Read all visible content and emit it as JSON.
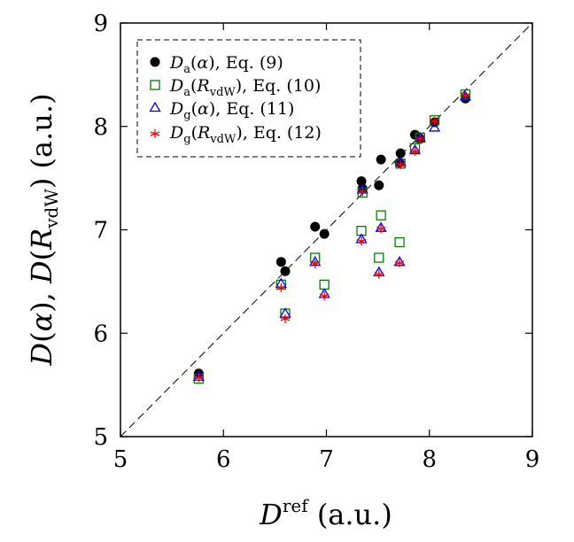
{
  "chart_data": {
    "type": "scatter",
    "xlabel": "D^ref (a.u.)",
    "ylabel": "D(α), D(R_vdW) (a.u.)",
    "xlim": [
      5,
      9
    ],
    "ylim": [
      5,
      9
    ],
    "xticks": [
      "5",
      "6",
      "7",
      "8",
      "9"
    ],
    "yticks": [
      "5",
      "6",
      "7",
      "8",
      "9"
    ],
    "diagonal": true,
    "grid": false,
    "legend_position": "top-left",
    "series": [
      {
        "name": "D_a(α), Eq. (9)",
        "marker": "filled-circle",
        "color": "#000000",
        "points": [
          [
            5.76,
            5.61
          ],
          [
            6.56,
            6.69
          ],
          [
            6.6,
            6.6
          ],
          [
            6.89,
            7.03
          ],
          [
            6.98,
            6.96
          ],
          [
            7.34,
            7.47
          ],
          [
            7.35,
            7.4
          ],
          [
            7.51,
            7.43
          ],
          [
            7.53,
            7.68
          ],
          [
            7.71,
            7.65
          ],
          [
            7.72,
            7.74
          ],
          [
            7.86,
            7.92
          ],
          [
            7.91,
            7.88
          ],
          [
            8.05,
            8.04
          ],
          [
            8.35,
            8.27
          ]
        ]
      },
      {
        "name": "D_a(R_vdW), Eq. (10)",
        "marker": "open-square",
        "color": "#008000",
        "points": [
          [
            5.76,
            5.56
          ],
          [
            6.56,
            6.47
          ],
          [
            6.6,
            6.19
          ],
          [
            6.89,
            6.73
          ],
          [
            6.98,
            6.47
          ],
          [
            7.34,
            6.99
          ],
          [
            7.35,
            7.36
          ],
          [
            7.51,
            6.73
          ],
          [
            7.53,
            7.14
          ],
          [
            7.71,
            6.88
          ],
          [
            7.72,
            7.64
          ],
          [
            7.86,
            7.79
          ],
          [
            7.91,
            7.89
          ],
          [
            8.05,
            8.06
          ],
          [
            8.35,
            8.31
          ]
        ]
      },
      {
        "name": "D_g(α), Eq. (11)",
        "marker": "open-triangle",
        "color": "#0000ff",
        "points": [
          [
            5.76,
            5.58
          ],
          [
            6.56,
            6.48
          ],
          [
            6.6,
            6.19
          ],
          [
            6.89,
            6.69
          ],
          [
            6.98,
            6.38
          ],
          [
            7.34,
            6.91
          ],
          [
            7.35,
            7.39
          ],
          [
            7.51,
            6.59
          ],
          [
            7.53,
            7.02
          ],
          [
            7.71,
            6.69
          ],
          [
            7.72,
            7.65
          ],
          [
            7.86,
            7.77
          ],
          [
            7.91,
            7.89
          ],
          [
            8.05,
            7.99
          ],
          [
            8.35,
            8.29
          ]
        ]
      },
      {
        "name": "D_g(R_vdW), Eq. (12)",
        "marker": "star",
        "color": "#ff0000",
        "points": [
          [
            5.76,
            5.57
          ],
          [
            6.56,
            6.44
          ],
          [
            6.6,
            6.14
          ],
          [
            6.89,
            6.67
          ],
          [
            6.98,
            6.36
          ],
          [
            7.34,
            6.89
          ],
          [
            7.35,
            7.37
          ],
          [
            7.51,
            6.57
          ],
          [
            7.53,
            7.01
          ],
          [
            7.71,
            6.68
          ],
          [
            7.72,
            7.63
          ],
          [
            7.86,
            7.76
          ],
          [
            7.91,
            7.88
          ],
          [
            8.05,
            8.05
          ],
          [
            8.35,
            8.3
          ]
        ]
      }
    ]
  }
}
